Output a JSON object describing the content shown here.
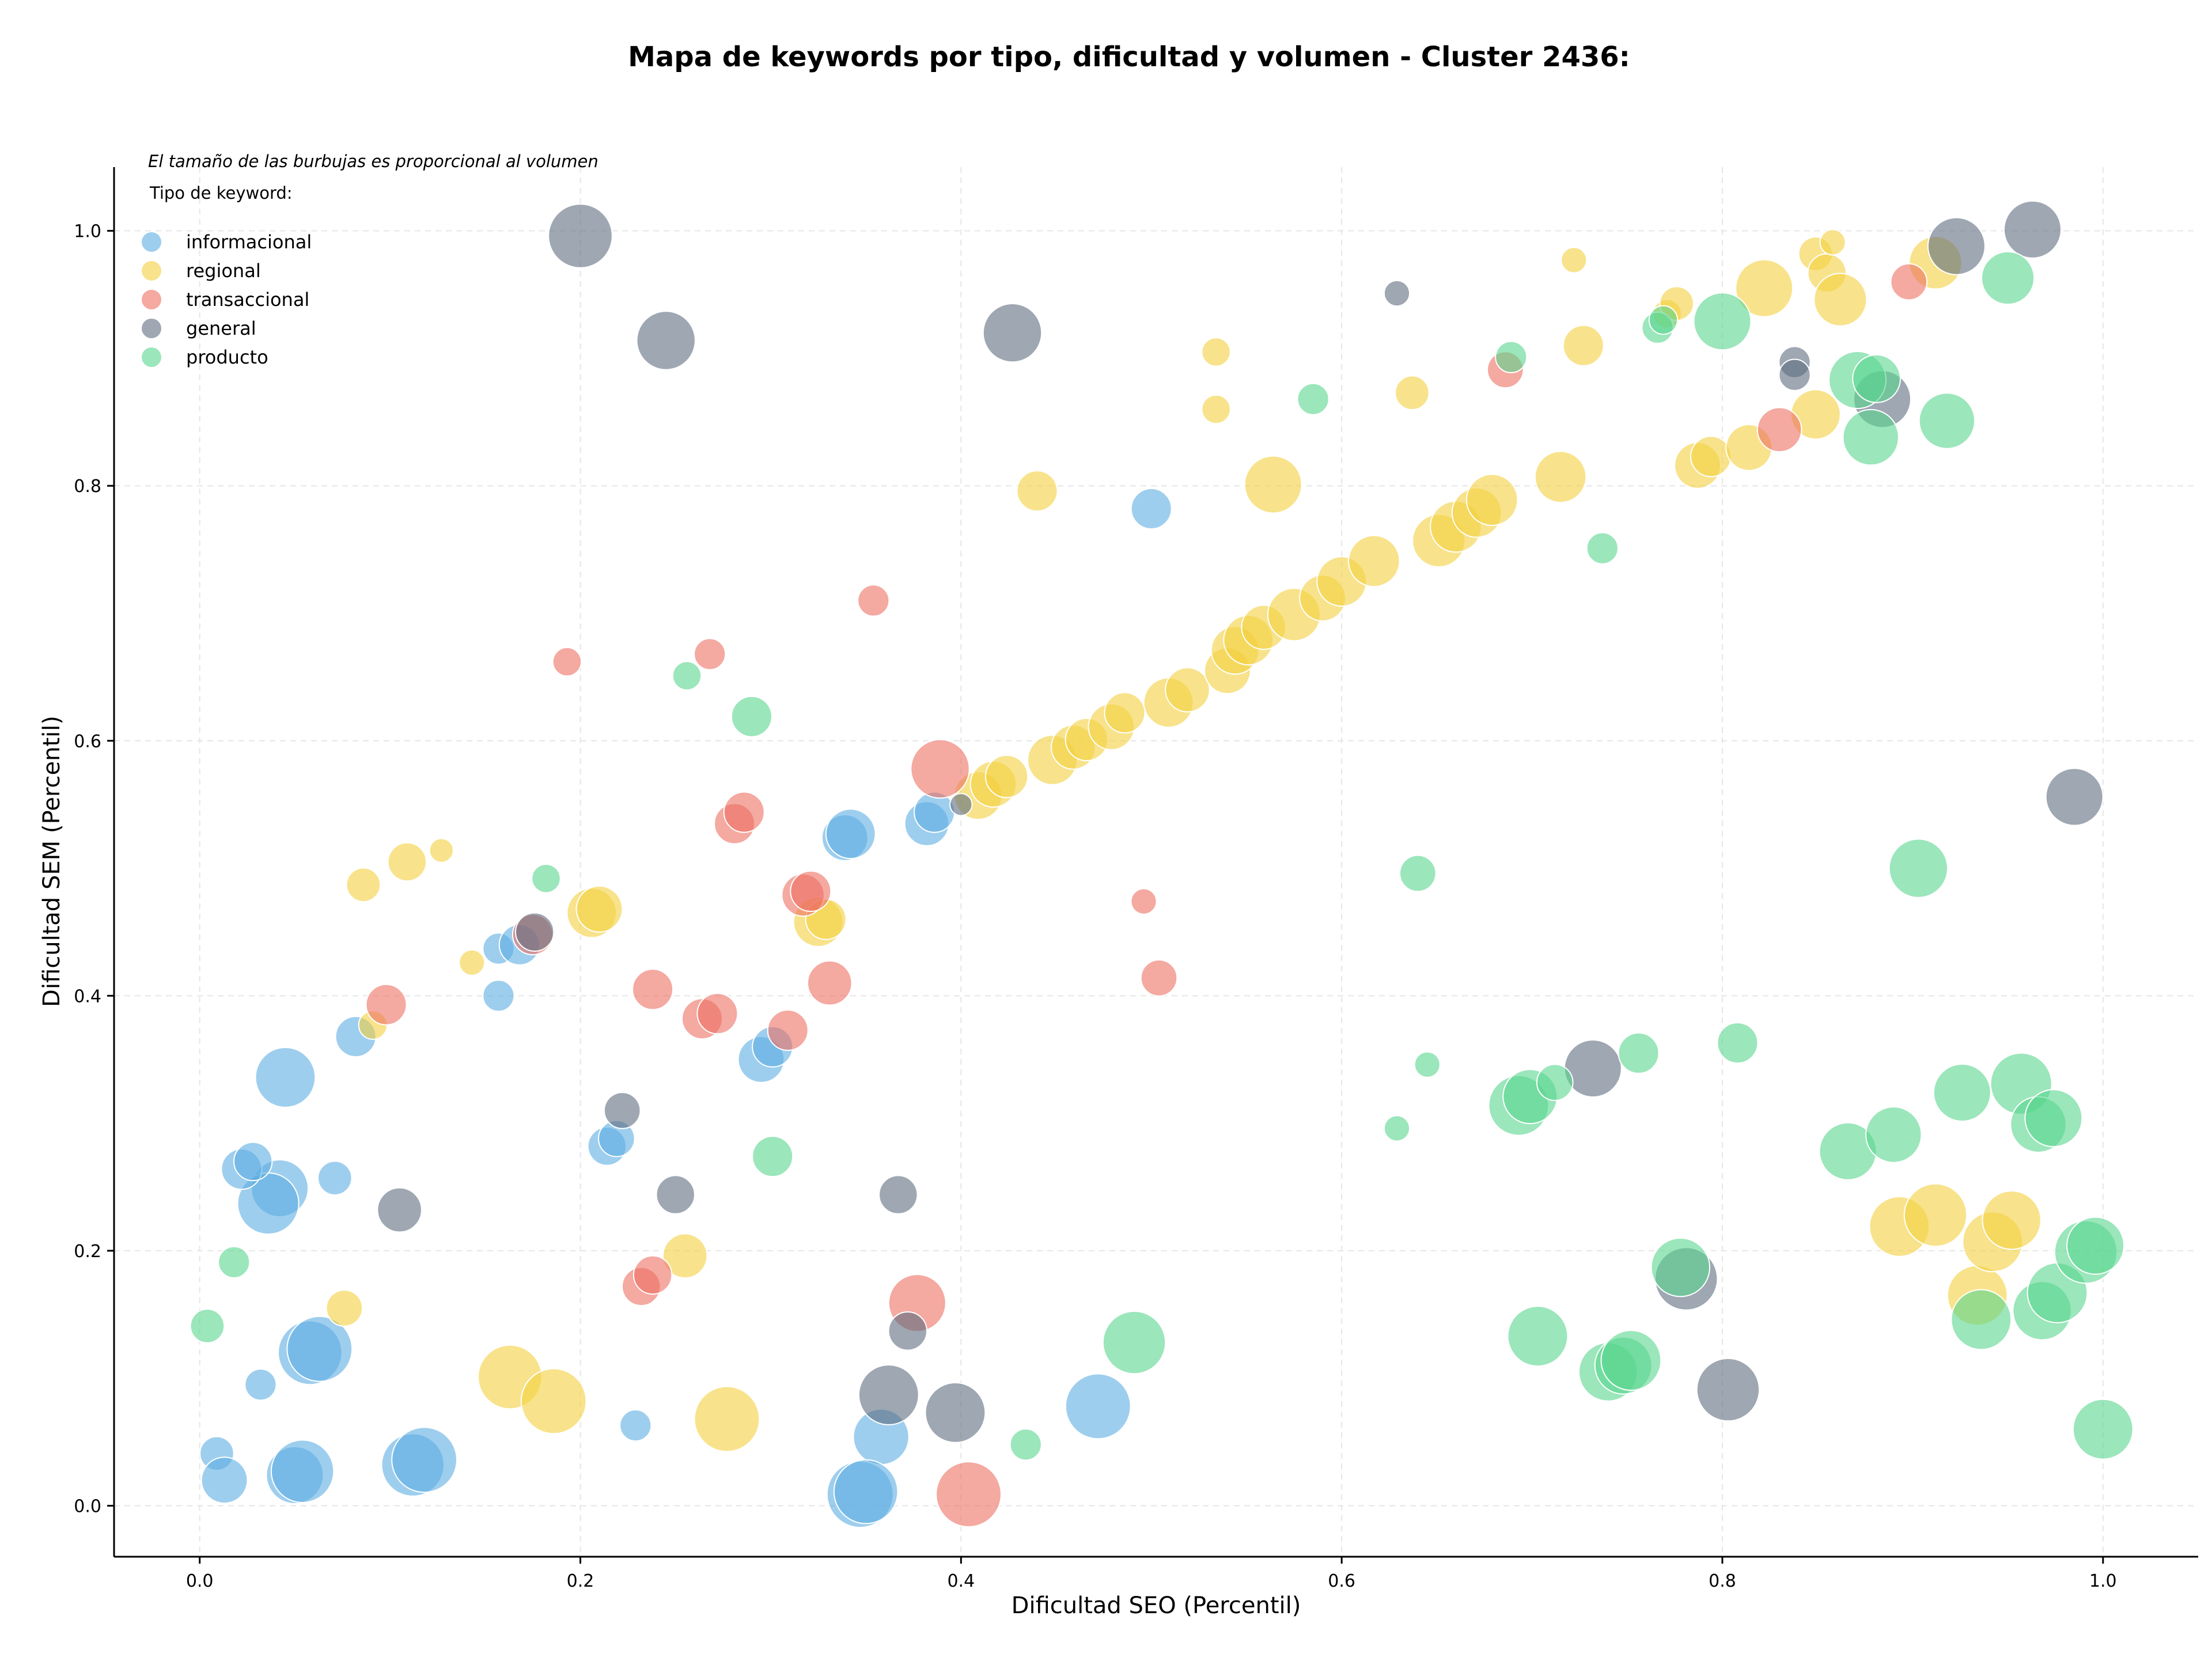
{
  "chart_data": {
    "type": "scatter",
    "title": "Mapa de keywords por tipo, dificultad y volumen - Cluster 2436:",
    "xlabel": "Dificultad SEO (Percentil)",
    "ylabel": "Dificultad SEM (Percentil)",
    "xlim": [
      -0.045,
      1.05
    ],
    "ylim": [
      -0.04,
      1.05
    ],
    "xticks": [
      0.0,
      0.2,
      0.4,
      0.6,
      0.8,
      1.0
    ],
    "yticks": [
      0.0,
      0.2,
      0.4,
      0.6,
      0.8,
      1.0
    ],
    "xtick_labels": [
      "0.0",
      "0.2",
      "0.4",
      "0.6",
      "0.8",
      "1.0"
    ],
    "ytick_labels": [
      "0.0",
      "0.2",
      "0.4",
      "0.6",
      "0.8",
      "1.0"
    ],
    "grid": true,
    "legend_title": "Tipo de keyword:",
    "legend_position": "top-left",
    "size_note": "El tamaño de las burbujas es proporcional al volumen",
    "series": [
      {
        "name": "informacional",
        "color": "#5dade2",
        "points": [
          [
            0.045,
            0.336,
            2.2
          ],
          [
            0.042,
            0.249,
            2.0
          ],
          [
            0.036,
            0.237,
            2.3
          ],
          [
            0.022,
            0.264,
            1.0
          ],
          [
            0.028,
            0.27,
            0.9
          ],
          [
            0.071,
            0.257,
            0.7
          ],
          [
            0.082,
            0.368,
            1.0
          ],
          [
            0.157,
            0.437,
            0.6
          ],
          [
            0.157,
            0.4,
            0.6
          ],
          [
            0.168,
            0.44,
            1.0
          ],
          [
            0.032,
            0.095,
            0.6
          ],
          [
            0.009,
            0.041,
            0.7
          ],
          [
            0.013,
            0.02,
            1.3
          ],
          [
            0.05,
            0.024,
            2.0
          ],
          [
            0.054,
            0.027,
            2.4
          ],
          [
            0.058,
            0.12,
            2.5
          ],
          [
            0.063,
            0.123,
            2.6
          ],
          [
            0.112,
            0.032,
            2.4
          ],
          [
            0.118,
            0.036,
            2.6
          ],
          [
            0.229,
            0.063,
            0.6
          ],
          [
            0.214,
            0.282,
            0.9
          ],
          [
            0.219,
            0.288,
            0.8
          ],
          [
            0.295,
            0.35,
            1.3
          ],
          [
            0.301,
            0.36,
            1.0
          ],
          [
            0.339,
            0.524,
            1.3
          ],
          [
            0.342,
            0.527,
            1.5
          ],
          [
            0.382,
            0.535,
            1.2
          ],
          [
            0.386,
            0.544,
            1.0
          ],
          [
            0.358,
            0.054,
            1.9
          ],
          [
            0.347,
            0.009,
            2.7
          ],
          [
            0.35,
            0.011,
            2.5
          ],
          [
            0.472,
            0.078,
            2.6
          ],
          [
            0.5,
            0.782,
            1.0
          ]
        ]
      },
      {
        "name": "regional",
        "color": "#f4d03f",
        "points": [
          [
            0.086,
            0.487,
            0.7
          ],
          [
            0.109,
            0.505,
            0.9
          ],
          [
            0.127,
            0.514,
            0.35
          ],
          [
            0.143,
            0.426,
            0.4
          ],
          [
            0.091,
            0.377,
            0.5
          ],
          [
            0.076,
            0.155,
            0.8
          ],
          [
            0.206,
            0.465,
            1.5
          ],
          [
            0.21,
            0.468,
            1.3
          ],
          [
            0.255,
            0.196,
            1.2
          ],
          [
            0.163,
            0.101,
            2.5
          ],
          [
            0.186,
            0.082,
            2.6
          ],
          [
            0.277,
            0.068,
            2.6
          ],
          [
            0.325,
            0.458,
            1.5
          ],
          [
            0.329,
            0.46,
            1.0
          ],
          [
            0.409,
            0.557,
            1.4
          ],
          [
            0.417,
            0.566,
            1.3
          ],
          [
            0.424,
            0.572,
            1.1
          ],
          [
            0.448,
            0.585,
            1.5
          ],
          [
            0.459,
            0.595,
            1.2
          ],
          [
            0.466,
            0.601,
            1.1
          ],
          [
            0.479,
            0.611,
            1.3
          ],
          [
            0.486,
            0.622,
            1.0
          ],
          [
            0.509,
            0.63,
            1.5
          ],
          [
            0.519,
            0.64,
            1.2
          ],
          [
            0.54,
            0.655,
            1.3
          ],
          [
            0.544,
            0.671,
            1.4
          ],
          [
            0.551,
            0.679,
            1.5
          ],
          [
            0.559,
            0.689,
            1.2
          ],
          [
            0.575,
            0.699,
            1.7
          ],
          [
            0.59,
            0.712,
            1.3
          ],
          [
            0.6,
            0.725,
            1.5
          ],
          [
            0.617,
            0.741,
            1.6
          ],
          [
            0.651,
            0.757,
            1.7
          ],
          [
            0.66,
            0.768,
            1.6
          ],
          [
            0.671,
            0.779,
            1.5
          ],
          [
            0.679,
            0.789,
            1.6
          ],
          [
            0.715,
            0.807,
            1.6
          ],
          [
            0.44,
            0.796,
            1.0
          ],
          [
            0.534,
            0.905,
            0.5
          ],
          [
            0.534,
            0.86,
            0.5
          ],
          [
            0.564,
            0.801,
            2.0
          ],
          [
            0.637,
            0.873,
            0.7
          ],
          [
            0.727,
            0.91,
            1.0
          ],
          [
            0.722,
            0.977,
            0.4
          ],
          [
            0.771,
            0.935,
            0.5
          ],
          [
            0.776,
            0.943,
            0.7
          ],
          [
            0.787,
            0.816,
            1.3
          ],
          [
            0.794,
            0.823,
            1.0
          ],
          [
            0.814,
            0.83,
            1.3
          ],
          [
            0.822,
            0.955,
            2.0
          ],
          [
            0.849,
            0.856,
            1.5
          ],
          [
            0.849,
            0.982,
            0.7
          ],
          [
            0.855,
            0.967,
            0.9
          ],
          [
            0.858,
            0.991,
            0.4
          ],
          [
            0.862,
            0.946,
            1.7
          ],
          [
            0.912,
            0.975,
            1.7
          ],
          [
            0.893,
            0.219,
            2.2
          ],
          [
            0.912,
            0.228,
            2.4
          ],
          [
            0.934,
            0.165,
            2.2
          ],
          [
            0.942,
            0.207,
            2.2
          ],
          [
            0.952,
            0.224,
            2.1
          ]
        ]
      },
      {
        "name": "transaccional",
        "color": "#ec7063",
        "points": [
          [
            0.193,
            0.662,
            0.5
          ],
          [
            0.098,
            0.393,
            1.0
          ],
          [
            0.175,
            0.448,
            1.0
          ],
          [
            0.268,
            0.668,
            0.6
          ],
          [
            0.354,
            0.71,
            0.6
          ],
          [
            0.238,
            0.405,
            1.0
          ],
          [
            0.264,
            0.382,
            1.0
          ],
          [
            0.272,
            0.386,
            1.0
          ],
          [
            0.281,
            0.535,
            1.0
          ],
          [
            0.286,
            0.544,
            1.0
          ],
          [
            0.309,
            0.373,
            1.0
          ],
          [
            0.317,
            0.479,
            1.1
          ],
          [
            0.321,
            0.482,
            1.0
          ],
          [
            0.331,
            0.41,
            1.2
          ],
          [
            0.389,
            0.578,
            2.1
          ],
          [
            0.232,
            0.172,
            0.9
          ],
          [
            0.238,
            0.181,
            0.9
          ],
          [
            0.377,
            0.159,
            2.0
          ],
          [
            0.404,
            0.009,
            2.6
          ],
          [
            0.496,
            0.474,
            0.4
          ],
          [
            0.504,
            0.414,
            0.8
          ],
          [
            0.686,
            0.891,
            0.8
          ],
          [
            0.83,
            0.844,
            1.2
          ],
          [
            0.898,
            0.96,
            0.8
          ]
        ]
      },
      {
        "name": "general",
        "color": "#5d6d7e",
        "points": [
          [
            0.2,
            0.996,
            2.5
          ],
          [
            0.245,
            0.914,
            2.1
          ],
          [
            0.427,
            0.92,
            2.1
          ],
          [
            0.629,
            0.951,
            0.4
          ],
          [
            0.176,
            0.45,
            0.9
          ],
          [
            0.222,
            0.31,
            0.8
          ],
          [
            0.105,
            0.232,
            1.2
          ],
          [
            0.25,
            0.244,
            0.9
          ],
          [
            0.367,
            0.244,
            0.9
          ],
          [
            0.372,
            0.137,
            0.9
          ],
          [
            0.362,
            0.087,
            2.2
          ],
          [
            0.397,
            0.073,
            2.2
          ],
          [
            0.4,
            0.55,
            0.3
          ],
          [
            0.732,
            0.343,
            2.0
          ],
          [
            0.781,
            0.178,
            2.4
          ],
          [
            0.803,
            0.091,
            2.4
          ],
          [
            0.838,
            0.897,
            0.6
          ],
          [
            0.838,
            0.887,
            0.6
          ],
          [
            0.884,
            0.868,
            2.0
          ],
          [
            0.923,
            0.988,
            2.0
          ],
          [
            0.963,
            1.001,
            2.0
          ],
          [
            0.985,
            0.556,
            2.0
          ]
        ]
      },
      {
        "name": "producto",
        "color": "#58d68d",
        "points": [
          [
            0.004,
            0.141,
            0.7
          ],
          [
            0.018,
            0.191,
            0.6
          ],
          [
            0.182,
            0.492,
            0.5
          ],
          [
            0.256,
            0.651,
            0.5
          ],
          [
            0.29,
            0.619,
            1.0
          ],
          [
            0.301,
            0.274,
            1.0
          ],
          [
            0.434,
            0.048,
            0.6
          ],
          [
            0.491,
            0.128,
            2.4
          ],
          [
            0.585,
            0.868,
            0.6
          ],
          [
            0.64,
            0.496,
            0.8
          ],
          [
            0.645,
            0.346,
            0.4
          ],
          [
            0.629,
            0.296,
            0.4
          ],
          [
            0.689,
            0.901,
            0.6
          ],
          [
            0.693,
            0.314,
            2.2
          ],
          [
            0.699,
            0.321,
            1.8
          ],
          [
            0.712,
            0.332,
            0.8
          ],
          [
            0.703,
            0.133,
            2.2
          ],
          [
            0.737,
            0.751,
            0.6
          ],
          [
            0.74,
            0.105,
            2.1
          ],
          [
            0.748,
            0.11,
            2.0
          ],
          [
            0.752,
            0.114,
            2.2
          ],
          [
            0.756,
            0.355,
            1.0
          ],
          [
            0.766,
            0.924,
            0.6
          ],
          [
            0.769,
            0.93,
            0.5
          ],
          [
            0.778,
            0.187,
            2.1
          ],
          [
            0.8,
            0.929,
            2.0
          ],
          [
            0.808,
            0.363,
            1.0
          ],
          [
            0.866,
            0.278,
            2.0
          ],
          [
            0.871,
            0.883,
            2.0
          ],
          [
            0.878,
            0.838,
            1.9
          ],
          [
            0.881,
            0.884,
            1.4
          ],
          [
            0.89,
            0.291,
            1.9
          ],
          [
            0.918,
            0.851,
            1.9
          ],
          [
            0.903,
            0.5,
            2.1
          ],
          [
            0.926,
            0.324,
            2.0
          ],
          [
            0.936,
            0.146,
            2.2
          ],
          [
            0.95,
            0.963,
            1.7
          ],
          [
            0.957,
            0.331,
            2.3
          ],
          [
            0.966,
            0.299,
            1.9
          ],
          [
            0.968,
            0.153,
            2.1
          ],
          [
            0.976,
            0.167,
            2.2
          ],
          [
            0.974,
            0.304,
            2.0
          ],
          [
            0.991,
            0.199,
            2.4
          ],
          [
            0.996,
            0.204,
            2.0
          ],
          [
            1.0,
            0.06,
            2.2
          ]
        ]
      }
    ]
  }
}
